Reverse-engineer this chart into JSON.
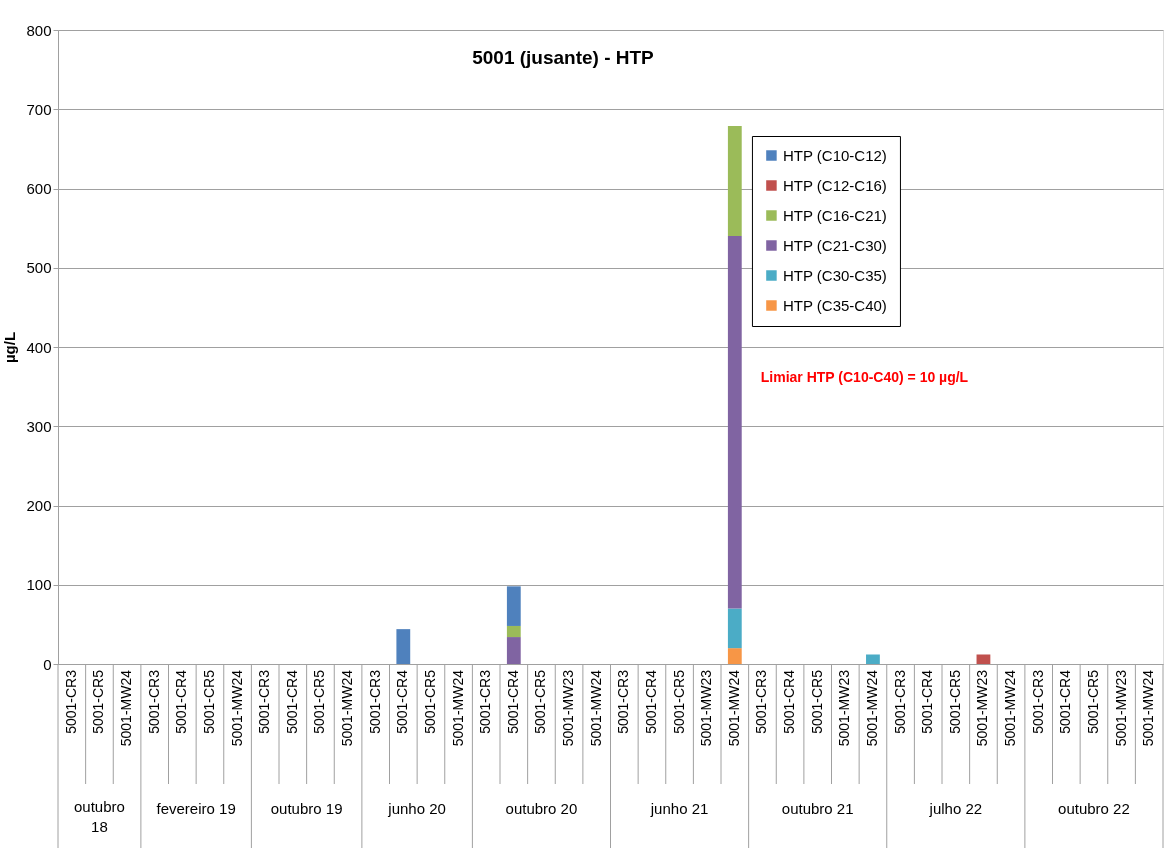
{
  "chart_data": {
    "type": "bar",
    "title": "5001 (jusante) -  HTP",
    "ylabel": "µg/L",
    "annotations": [
      "Limiar HTP (C10-C40) = 10 µg/L",
      "outubro 18",
      "fevereiro 19",
      "outubro 19",
      "junho 20",
      "outubro 20",
      "junho 21",
      "outubro 21",
      "julho 22",
      "outubro 22"
    ],
    "categories": [
      "5001-CR3",
      "5001-CR5",
      "5001-MW24",
      "5001-CR3",
      "5001-CR4",
      "5001-CR5",
      "5001-MW24",
      "5001-CR3",
      "5001-CR4",
      "5001-CR5",
      "5001-MW24",
      "5001-CR3",
      "5001-CR4",
      "5001-CR5",
      "5001-MW24",
      "5001-CR3",
      "5001-CR4",
      "5001-CR5",
      "5001-MW23",
      "5001-MW24",
      "5001-CR3",
      "5001-CR4",
      "5001-CR5",
      "5001-MW23",
      "5001-MW24",
      "5001-CR3",
      "5001-CR4",
      "5001-CR5",
      "5001-MW23",
      "5001-MW24",
      "5001-CR3",
      "5001-CR4",
      "5001-CR5",
      "5001-MW23",
      "5001-MW24",
      "5001-CR3",
      "5001-CR4",
      "5001-CR5",
      "5001-MW23",
      "5001-MW24"
    ],
    "stacked": true,
    "series": [
      {
        "name": "HTP (C35-C40)",
        "color": "#f79646",
        "values": [
          null,
          null,
          null,
          null,
          null,
          null,
          null,
          null,
          null,
          null,
          null,
          null,
          null,
          null,
          null,
          null,
          null,
          null,
          null,
          null,
          null,
          null,
          null,
          null,
          20,
          null,
          null,
          null,
          null,
          null,
          null,
          null,
          null,
          null,
          null,
          null,
          null,
          null,
          null,
          null
        ]
      },
      {
        "name": "HTP (C30-C35)",
        "color": "#4bacc6",
        "values": [
          null,
          null,
          null,
          null,
          null,
          null,
          null,
          null,
          null,
          null,
          null,
          null,
          null,
          null,
          null,
          null,
          null,
          null,
          null,
          null,
          null,
          null,
          null,
          null,
          50,
          null,
          null,
          null,
          null,
          12,
          null,
          null,
          null,
          null,
          null,
          null,
          null,
          null,
          null,
          null
        ]
      },
      {
        "name": "HTP (C21-C30)",
        "color": "#8064a2",
        "values": [
          null,
          null,
          null,
          null,
          null,
          null,
          null,
          null,
          null,
          null,
          null,
          null,
          null,
          null,
          null,
          null,
          34,
          null,
          null,
          null,
          null,
          null,
          null,
          null,
          470,
          null,
          null,
          null,
          null,
          null,
          null,
          null,
          null,
          null,
          null,
          null,
          null,
          null,
          null,
          null
        ]
      },
      {
        "name": "HTP (C16-C21)",
        "color": "#9bbb59",
        "values": [
          null,
          null,
          null,
          null,
          null,
          null,
          null,
          null,
          null,
          null,
          null,
          null,
          null,
          null,
          null,
          null,
          14,
          null,
          null,
          null,
          null,
          null,
          null,
          null,
          139,
          null,
          null,
          null,
          null,
          null,
          null,
          null,
          null,
          null,
          null,
          null,
          null,
          null,
          null,
          null
        ]
      },
      {
        "name": "HTP (C12-C16)",
        "color": "#c0504d",
        "values": [
          null,
          null,
          null,
          null,
          null,
          null,
          null,
          null,
          null,
          null,
          null,
          null,
          null,
          null,
          null,
          null,
          null,
          null,
          null,
          null,
          null,
          null,
          null,
          null,
          null,
          null,
          null,
          null,
          null,
          null,
          null,
          null,
          null,
          12,
          null,
          null,
          null,
          null,
          null,
          null
        ]
      },
      {
        "name": "HTP (C10-C12)",
        "color": "#4f81bd",
        "values": [
          null,
          null,
          null,
          null,
          null,
          null,
          null,
          null,
          null,
          null,
          null,
          null,
          44,
          null,
          null,
          null,
          50,
          null,
          null,
          null,
          null,
          null,
          null,
          null,
          null,
          null,
          null,
          null,
          null,
          null,
          null,
          null,
          null,
          null,
          null,
          null,
          null,
          null,
          null,
          null
        ]
      }
    ],
    "ylim": [
      0,
      800
    ],
    "yticks": [
      0,
      100,
      200,
      300,
      400,
      500,
      600,
      700,
      800
    ],
    "grid": "y",
    "legend": "top right"
  }
}
